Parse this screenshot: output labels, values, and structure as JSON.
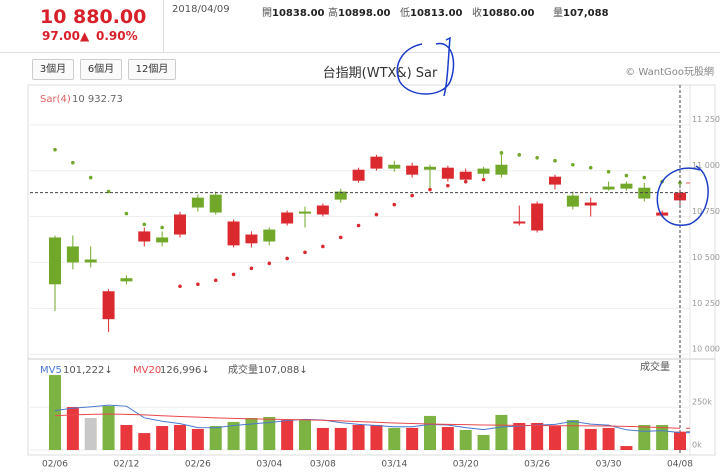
{
  "header": {
    "price": "10 880.00",
    "change": "97.00▲",
    "change_pct": "0.90%",
    "date": "2018/04/09",
    "fields": [
      {
        "label": "開",
        "value": "10838.00"
      },
      {
        "label": "高",
        "value": "10898.00"
      },
      {
        "label": "低",
        "value": "10813.00"
      },
      {
        "label": "收",
        "value": "10880.00"
      },
      {
        "label": "量",
        "value": "107,088"
      }
    ]
  },
  "toolbar": {
    "buttons": [
      "3個月",
      "6個月",
      "12個月"
    ],
    "copyright": "© WantGoo玩股網"
  },
  "chart_data": [
    {
      "type": "candlestick",
      "title": "台指期(WTX&) Sar",
      "categories": [
        "02/06",
        null,
        null,
        null,
        "02/12",
        null,
        null,
        null,
        "02/26",
        null,
        null,
        null,
        "03/04",
        null,
        null,
        "03/08",
        null,
        null,
        null,
        "03/14",
        null,
        null,
        null,
        "03/20",
        null,
        null,
        null,
        "03/26",
        null,
        null,
        null,
        "03/30",
        null,
        null,
        null,
        "04/08"
      ],
      "open": [
        10636,
        10587,
        10516,
        10191,
        10414,
        10614,
        10636,
        10652,
        10853,
        10869,
        10593,
        10604,
        10679,
        10712,
        10777,
        10761,
        10886,
        10945,
        11011,
        11032,
        10978,
        11021,
        10956,
        10951,
        11011,
        11032,
        10712,
        10674,
        10924,
        10864,
        10810,
        10913,
        10929,
        10907,
        10755,
        10838
      ],
      "high": [
        10647,
        10647,
        10587,
        10354,
        10430,
        10690,
        10669,
        10777,
        10869,
        10886,
        10734,
        10669,
        10690,
        10783,
        10804,
        10821,
        10902,
        11016,
        11086,
        11054,
        11043,
        11032,
        11027,
        11011,
        11021,
        11103,
        10810,
        10832,
        10978,
        10886,
        10853,
        10940,
        10940,
        10934,
        10783,
        10898
      ],
      "low": [
        10235,
        10462,
        10473,
        10121,
        10381,
        10587,
        10587,
        10636,
        10777,
        10761,
        10582,
        10582,
        10593,
        10701,
        10690,
        10750,
        10826,
        10934,
        11000,
        10994,
        10962,
        10907,
        10940,
        10929,
        10962,
        10962,
        10701,
        10663,
        10897,
        10788,
        10750,
        10891,
        10891,
        10832,
        10745,
        10813
      ],
      "close": [
        10381,
        10500,
        10500,
        10343,
        10397,
        10669,
        10609,
        10761,
        10799,
        10772,
        10723,
        10652,
        10614,
        10772,
        10766,
        10810,
        10842,
        11005,
        11076,
        11011,
        11027,
        11005,
        11016,
        10994,
        10983,
        10978,
        10723,
        10821,
        10967,
        10804,
        10826,
        10897,
        10902,
        10848,
        10772,
        10880
      ],
      "up_color": "#db2a2f",
      "down_color": "#72a82a",
      "sar": {
        "name": "Sar(4)",
        "values": [
          11114,
          11043,
          10962,
          10886,
          10766,
          10707,
          10690,
          10370,
          10381,
          10403,
          10435,
          10468,
          10495,
          10522,
          10555,
          10587,
          10636,
          10701,
          10761,
          10815,
          10864,
          10897,
          10918,
          10940,
          10951,
          11097,
          11086,
          11070,
          11054,
          11032,
          11016,
          10994,
          10973,
          10962,
          10940,
          10932.73
        ],
        "current": {
          "value": 10932.73,
          "label": "10 932.73"
        }
      },
      "ylim": [
        9985,
        11450
      ],
      "yticks": [
        {
          "value": 11250,
          "label": "11 250"
        },
        {
          "value": 11000,
          "label": "11 000"
        },
        {
          "value": 10750,
          "label": "10 750"
        },
        {
          "value": 10500,
          "label": "10 500"
        },
        {
          "value": 10250,
          "label": "10 250"
        },
        {
          "value": 10000,
          "label": "10 000"
        }
      ],
      "grid": true
    },
    {
      "type": "bar",
      "title": "成交量",
      "series": [
        {
          "name": "成交量",
          "values": [
            438000,
            251000,
            187000,
            257000,
            146000,
            99000,
            140000,
            146000,
            123000,
            140000,
            164000,
            187000,
            193000,
            175000,
            175000,
            129000,
            129000,
            146000,
            146000,
            129000,
            129000,
            199000,
            134000,
            117000,
            88000,
            205000,
            158000,
            158000,
            140000,
            175000,
            123000,
            129000,
            23000,
            146000,
            146000,
            107088
          ],
          "colors": [
            "#7cb342",
            "#e8383d",
            "#c8c8c8",
            "#7cb342",
            "#e8383d",
            "#e8383d",
            "#e8383d",
            "#e8383d",
            "#e8383d",
            "#7cb342",
            "#7cb342",
            "#7cb342",
            "#7cb342",
            "#e8383d",
            "#7cb342",
            "#e8383d",
            "#e8383d",
            "#e8383d",
            "#e8383d",
            "#7cb342",
            "#e8383d",
            "#7cb342",
            "#e8383d",
            "#7cb342",
            "#7cb342",
            "#7cb342",
            "#e8383d",
            "#e8383d",
            "#e8383d",
            "#7cb342",
            "#e8383d",
            "#e8383d",
            "#e8383d",
            "#7cb342",
            "#7cb342",
            "#e8383d"
          ],
          "current": {
            "value": 107088,
            "label": "107,088↓"
          }
        }
      ],
      "lines": [
        {
          "name": "MV5",
          "color": "#4a78d0",
          "values": [
            230000,
            245000,
            252000,
            262000,
            256000,
            188000,
            168000,
            154000,
            131000,
            130000,
            143000,
            152000,
            161000,
            172000,
            179000,
            175000,
            160000,
            150000,
            143000,
            136000,
            136000,
            150000,
            146000,
            131000,
            119000,
            135000,
            140000,
            145000,
            150000,
            167000,
            151000,
            145000,
            118000,
            109000,
            113000,
            101222
          ],
          "current": {
            "value": 101222,
            "label": "101,222↓"
          }
        },
        {
          "name": "MV20",
          "color": "#e8484d",
          "values": [
            200000,
            205000,
            208000,
            210000,
            208000,
            205000,
            200000,
            196000,
            192000,
            188000,
            185000,
            182000,
            180000,
            178000,
            176000,
            174000,
            170000,
            166000,
            162000,
            158000,
            155000,
            152000,
            150000,
            148000,
            146000,
            145000,
            144000,
            143000,
            142000,
            142000,
            141000,
            140000,
            138000,
            135000,
            131000,
            126996
          ],
          "current": {
            "value": 126996,
            "label": "126,996↓"
          }
        }
      ],
      "ylim": [
        0,
        520000
      ],
      "yticks": [
        {
          "value": 250000,
          "label": "250k"
        },
        {
          "value": 0,
          "label": "0k"
        }
      ],
      "grid": true
    }
  ]
}
